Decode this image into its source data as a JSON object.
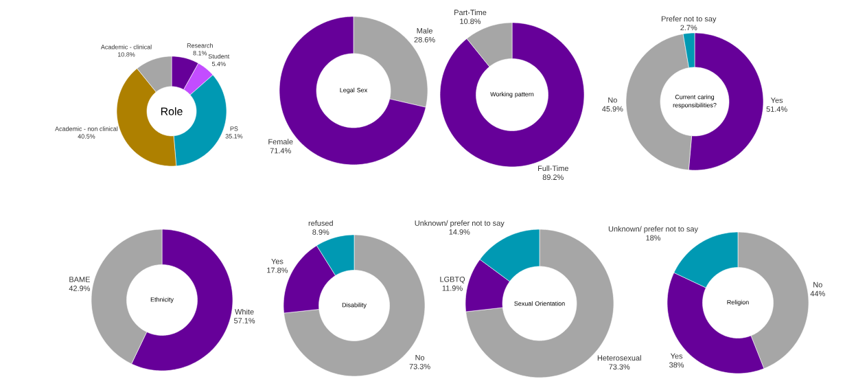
{
  "chart_data": [
    {
      "type": "donut",
      "title": "Role",
      "categories": [
        "Research",
        "Student",
        "PS",
        "Academic - non clinical",
        "Academic - clinical"
      ],
      "values": [
        8.1,
        5.4,
        35.1,
        40.5,
        10.8
      ],
      "colors": [
        "#660099",
        "#c34dff",
        "#0099b3",
        "#ae8000",
        "#a6a6a6"
      ],
      "value_labels": [
        "8.1%",
        "5.4%",
        "35.1%",
        "40.5%",
        "10.8%"
      ]
    },
    {
      "type": "donut",
      "title": "Legal Sex",
      "categories": [
        "Male",
        "Female"
      ],
      "values": [
        28.6,
        71.4
      ],
      "colors": [
        "#a6a6a6",
        "#660099"
      ],
      "value_labels": [
        "28.6%",
        "71.4%"
      ]
    },
    {
      "type": "donut",
      "title": "Working pattern",
      "categories": [
        "Full-Time",
        "Part-Time"
      ],
      "values": [
        89.2,
        10.8
      ],
      "colors": [
        "#660099",
        "#a6a6a6"
      ],
      "value_labels": [
        "89.2%",
        "10.8%"
      ]
    },
    {
      "type": "donut",
      "title": "Current caring responsibilities?",
      "categories": [
        "Yes",
        "No",
        "Prefer not to say"
      ],
      "values": [
        51.4,
        45.9,
        2.7
      ],
      "colors": [
        "#660099",
        "#a6a6a6",
        "#0099b3"
      ],
      "value_labels": [
        "51.4%",
        "45.9%",
        "2.7%"
      ]
    },
    {
      "type": "donut",
      "title": "Ethnicity",
      "categories": [
        "White",
        "BAME"
      ],
      "values": [
        57.1,
        42.9
      ],
      "colors": [
        "#660099",
        "#a6a6a6"
      ],
      "value_labels": [
        "57.1%",
        "42.9%"
      ]
    },
    {
      "type": "donut",
      "title": "Disability",
      "categories": [
        "No",
        "Yes",
        "refused"
      ],
      "values": [
        73.3,
        17.8,
        8.9
      ],
      "colors": [
        "#a6a6a6",
        "#660099",
        "#0099b3"
      ],
      "value_labels": [
        "73.3%",
        "17.8%",
        "8.9%"
      ]
    },
    {
      "type": "donut",
      "title": "Sexual Orientation",
      "categories": [
        "Heterosexual",
        "LGBTQ",
        "Unknown/ prefer not to say"
      ],
      "values": [
        73.3,
        11.9,
        14.9
      ],
      "colors": [
        "#a6a6a6",
        "#660099",
        "#0099b3"
      ],
      "value_labels": [
        "73.3%",
        "11.9%",
        "14.9%"
      ]
    },
    {
      "type": "donut",
      "title": "Religion",
      "categories": [
        "No",
        "Yes",
        "Unknown/ prefer not to say"
      ],
      "values": [
        44,
        38,
        18
      ],
      "colors": [
        "#a6a6a6",
        "#660099",
        "#0099b3"
      ],
      "value_labels": [
        "44%",
        "38%",
        "18%"
      ]
    }
  ]
}
